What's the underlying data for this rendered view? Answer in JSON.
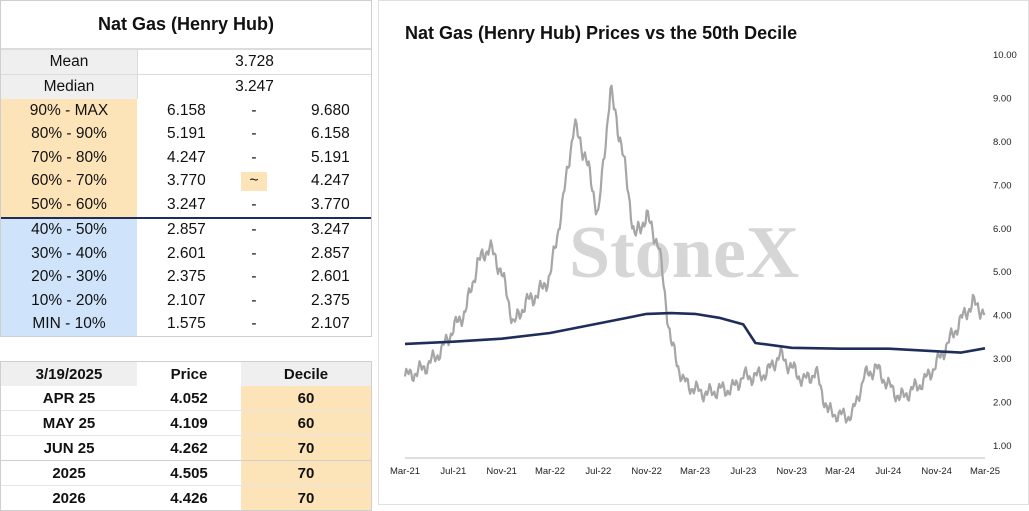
{
  "left_table": {
    "title": "Nat Gas (Henry Hub)",
    "mean_label": "Mean",
    "mean_value": "3.728",
    "median_label": "Median",
    "median_value": "3.247",
    "rows": [
      {
        "label": "90% - MAX",
        "low": "6.158",
        "sep": "-",
        "high": "9.680",
        "band": "orange"
      },
      {
        "label": "80% - 90%",
        "low": "5.191",
        "sep": "-",
        "high": "6.158",
        "band": "orange"
      },
      {
        "label": "70% - 80%",
        "low": "4.247",
        "sep": "-",
        "high": "5.191",
        "band": "orange"
      },
      {
        "label": "60% - 70%",
        "low": "3.770",
        "sep": "~",
        "high": "4.247",
        "band": "orange"
      },
      {
        "label": "50% - 60%",
        "low": "3.247",
        "sep": "-",
        "high": "3.770",
        "band": "orange"
      },
      {
        "label": "40% - 50%",
        "low": "2.857",
        "sep": "-",
        "high": "3.247",
        "band": "blue"
      },
      {
        "label": "30% - 40%",
        "low": "2.601",
        "sep": "-",
        "high": "2.857",
        "band": "blue"
      },
      {
        "label": "20% - 30%",
        "low": "2.375",
        "sep": "-",
        "high": "2.601",
        "band": "blue"
      },
      {
        "label": "10% - 20%",
        "low": "2.107",
        "sep": "-",
        "high": "2.375",
        "band": "blue"
      },
      {
        "label": "MIN - 10%",
        "low": "1.575",
        "sep": "-",
        "high": "2.107",
        "band": "blue"
      }
    ]
  },
  "price_table": {
    "headers": [
      "3/19/2025",
      "Price",
      "Decile"
    ],
    "rows": [
      {
        "contract": "APR 25",
        "price": "4.052",
        "decile": "60"
      },
      {
        "contract": "MAY 25",
        "price": "4.109",
        "decile": "60"
      },
      {
        "contract": "JUN 25",
        "price": "4.262",
        "decile": "70"
      },
      {
        "contract": "2025",
        "price": "4.505",
        "decile": "70"
      },
      {
        "contract": "2026",
        "price": "4.426",
        "decile": "70"
      }
    ]
  },
  "colors": {
    "orange_band": "#fde4b8",
    "blue_band": "#cfe3fb",
    "price_line": "#a6a6a6",
    "decile_line": "#1f2d5a"
  },
  "watermark": "StoneX",
  "chart_data": {
    "type": "line",
    "title": "Nat Gas (Henry Hub) Prices vs the 50th Decile",
    "xlabel": "",
    "ylabel": "",
    "x_ticks": [
      "Mar-21",
      "Jul-21",
      "Nov-21",
      "Mar-22",
      "Jul-22",
      "Nov-22",
      "Mar-23",
      "Jul-23",
      "Nov-23",
      "Mar-24",
      "Jul-24",
      "Nov-24",
      "Mar-25"
    ],
    "y_ticks": [
      "1.00",
      "2.00",
      "3.00",
      "4.00",
      "5.00",
      "6.00",
      "7.00",
      "8.00",
      "9.00",
      "10.00"
    ],
    "ylim": [
      1,
      10
    ],
    "grid": false,
    "series": [
      {
        "style": "grey-line",
        "x": [
          "2021-03",
          "2021-04",
          "2021-05",
          "2021-06",
          "2021-07",
          "2021-08",
          "2021-09",
          "2021-10",
          "2021-11",
          "2021-12",
          "2022-01",
          "2022-02",
          "2022-03",
          "2022-04",
          "2022-05",
          "2022-06",
          "2022-07",
          "2022-08",
          "2022-09",
          "2022-10",
          "2022-11",
          "2022-12",
          "2023-01",
          "2023-02",
          "2023-03",
          "2023-04",
          "2023-05",
          "2023-06",
          "2023-07",
          "2023-08",
          "2023-09",
          "2023-10",
          "2023-11",
          "2023-12",
          "2024-01",
          "2024-02",
          "2024-03",
          "2024-04",
          "2024-05",
          "2024-06",
          "2024-07",
          "2024-08",
          "2024-09",
          "2024-10",
          "2024-11",
          "2024-12",
          "2025-01",
          "2025-02",
          "2025-03"
        ],
        "values": [
          2.6,
          2.7,
          2.9,
          3.2,
          3.7,
          4.1,
          5.2,
          5.6,
          5.0,
          3.8,
          4.3,
          4.5,
          4.9,
          6.5,
          8.4,
          7.6,
          6.3,
          9.2,
          7.8,
          5.8,
          6.3,
          5.6,
          3.4,
          2.5,
          2.3,
          2.2,
          2.3,
          2.3,
          2.6,
          2.6,
          2.7,
          3.1,
          2.8,
          2.5,
          2.7,
          1.8,
          1.7,
          1.7,
          2.6,
          2.8,
          2.4,
          2.1,
          2.3,
          2.5,
          2.9,
          3.4,
          3.9,
          4.3,
          4.05
        ]
      },
      {
        "style": "navy-line",
        "x": [
          "2021-03",
          "2021-07",
          "2021-11",
          "2022-03",
          "2022-07",
          "2022-11",
          "2023-01",
          "2023-03",
          "2023-05",
          "2023-07",
          "2023-08",
          "2023-11",
          "2024-03",
          "2024-07",
          "2024-11",
          "2025-01",
          "2025-03"
        ],
        "values": [
          3.35,
          3.4,
          3.47,
          3.6,
          3.82,
          4.04,
          4.06,
          4.04,
          3.95,
          3.8,
          3.37,
          3.26,
          3.24,
          3.24,
          3.18,
          3.15,
          3.25
        ]
      }
    ]
  }
}
